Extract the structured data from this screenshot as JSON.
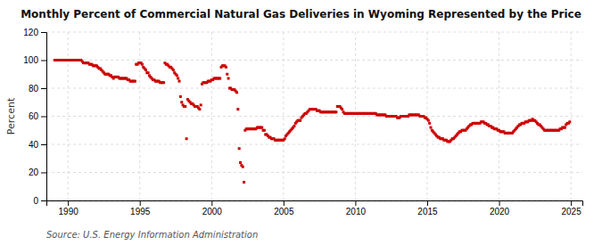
{
  "chart_data": {
    "type": "scatter",
    "title": "Monthly Percent of Commercial Natural Gas Deliveries in Wyoming Represented by the Price",
    "y_label": "Percent",
    "source": "Source: U.S. Energy Information Administration",
    "color": "#cc0000",
    "marker": "square",
    "grid": true,
    "xlim": [
      1988.5,
      2025.8
    ],
    "xticks": [
      1990,
      1995,
      2000,
      2005,
      2010,
      2015,
      2020,
      2025
    ],
    "ylim": [
      0,
      120
    ],
    "yticks": [
      0,
      20,
      40,
      60,
      80,
      100,
      120
    ],
    "x": [
      1989.083,
      1989.167,
      1989.25,
      1989.333,
      1989.417,
      1989.5,
      1989.583,
      1989.667,
      1989.75,
      1989.833,
      1989.917,
      1990,
      1990.083,
      1990.167,
      1990.25,
      1990.333,
      1990.417,
      1990.5,
      1990.583,
      1990.667,
      1990.75,
      1990.833,
      1990.917,
      1991,
      1991.083,
      1991.167,
      1991.25,
      1991.333,
      1991.417,
      1991.5,
      1991.583,
      1991.667,
      1991.75,
      1991.833,
      1991.917,
      1992,
      1992.083,
      1992.167,
      1992.25,
      1992.333,
      1992.417,
      1992.5,
      1992.583,
      1992.667,
      1992.75,
      1992.833,
      1992.917,
      1993,
      1993.083,
      1993.167,
      1993.25,
      1993.333,
      1993.417,
      1993.5,
      1993.583,
      1993.667,
      1993.75,
      1993.833,
      1993.917,
      1994,
      1994.083,
      1994.167,
      1994.25,
      1994.333,
      1994.417,
      1994.5,
      1994.583,
      1994.667,
      1994.75,
      1994.833,
      1994.917,
      1995,
      1995.083,
      1995.167,
      1995.25,
      1995.333,
      1995.417,
      1995.5,
      1995.583,
      1995.667,
      1995.75,
      1995.833,
      1995.917,
      1996,
      1996.083,
      1996.167,
      1996.25,
      1996.333,
      1996.417,
      1996.5,
      1996.583,
      1996.667,
      1996.75,
      1996.833,
      1996.917,
      1997,
      1997.083,
      1997.167,
      1997.25,
      1997.333,
      1997.417,
      1997.5,
      1997.583,
      1997.667,
      1997.75,
      1997.833,
      1997.917,
      1998,
      1998.083,
      1998.167,
      1998.25,
      1998.333,
      1998.417,
      1998.5,
      1998.583,
      1998.667,
      1998.75,
      1998.833,
      1998.917,
      1999,
      1999.083,
      1999.167,
      1999.25,
      1999.333,
      1999.417,
      1999.5,
      1999.583,
      1999.667,
      1999.75,
      1999.833,
      1999.917,
      2000,
      2000.083,
      2000.167,
      2000.25,
      2000.333,
      2000.417,
      2000.5,
      2000.583,
      2000.667,
      2000.75,
      2000.833,
      2000.917,
      2001,
      2001.083,
      2001.167,
      2001.25,
      2001.333,
      2001.417,
      2001.5,
      2001.583,
      2001.667,
      2001.75,
      2001.833,
      2001.917,
      2002,
      2002.083,
      2002.167,
      2002.25,
      2002.333,
      2002.417,
      2002.5,
      2002.583,
      2002.667,
      2002.75,
      2002.833,
      2002.917,
      2003,
      2003.083,
      2003.167,
      2003.25,
      2003.333,
      2003.417,
      2003.5,
      2003.583,
      2003.667,
      2003.75,
      2003.833,
      2003.917,
      2004,
      2004.083,
      2004.167,
      2004.25,
      2004.333,
      2004.417,
      2004.5,
      2004.583,
      2004.667,
      2004.75,
      2004.833,
      2004.917,
      2005,
      2005.083,
      2005.167,
      2005.25,
      2005.333,
      2005.417,
      2005.5,
      2005.583,
      2005.667,
      2005.75,
      2005.833,
      2005.917,
      2006,
      2006.083,
      2006.167,
      2006.25,
      2006.333,
      2006.417,
      2006.5,
      2006.583,
      2006.667,
      2006.75,
      2006.833,
      2006.917,
      2007,
      2007.083,
      2007.167,
      2007.25,
      2007.333,
      2007.417,
      2007.5,
      2007.583,
      2007.667,
      2007.75,
      2007.833,
      2007.917,
      2008,
      2008.083,
      2008.167,
      2008.25,
      2008.333,
      2008.417,
      2008.5,
      2008.583,
      2008.667,
      2008.75,
      2008.833,
      2008.917,
      2009,
      2009.083,
      2009.167,
      2009.25,
      2009.333,
      2009.417,
      2009.5,
      2009.583,
      2009.667,
      2009.75,
      2009.833,
      2009.917,
      2010,
      2010.083,
      2010.167,
      2010.25,
      2010.333,
      2010.417,
      2010.5,
      2010.583,
      2010.667,
      2010.75,
      2010.833,
      2010.917,
      2011,
      2011.083,
      2011.167,
      2011.25,
      2011.333,
      2011.417,
      2011.5,
      2011.583,
      2011.667,
      2011.75,
      2011.833,
      2011.917,
      2012,
      2012.083,
      2012.167,
      2012.25,
      2012.333,
      2012.417,
      2012.5,
      2012.583,
      2012.667,
      2012.75,
      2012.833,
      2012.917,
      2013,
      2013.083,
      2013.167,
      2013.25,
      2013.333,
      2013.417,
      2013.5,
      2013.583,
      2013.667,
      2013.75,
      2013.833,
      2013.917,
      2014,
      2014.083,
      2014.167,
      2014.25,
      2014.333,
      2014.417,
      2014.5,
      2014.583,
      2014.667,
      2014.75,
      2014.833,
      2014.917,
      2015,
      2015.083,
      2015.167,
      2015.25,
      2015.333,
      2015.417,
      2015.5,
      2015.583,
      2015.667,
      2015.75,
      2015.833,
      2015.917,
      2016,
      2016.083,
      2016.167,
      2016.25,
      2016.333,
      2016.417,
      2016.5,
      2016.583,
      2016.667,
      2016.75,
      2016.833,
      2016.917,
      2017,
      2017.083,
      2017.167,
      2017.25,
      2017.333,
      2017.417,
      2017.5,
      2017.583,
      2017.667,
      2017.75,
      2017.833,
      2017.917,
      2018,
      2018.083,
      2018.167,
      2018.25,
      2018.333,
      2018.417,
      2018.5,
      2018.583,
      2018.667,
      2018.75,
      2018.833,
      2018.917,
      2019,
      2019.083,
      2019.167,
      2019.25,
      2019.333,
      2019.417,
      2019.5,
      2019.583,
      2019.667,
      2019.75,
      2019.833,
      2019.917,
      2020,
      2020.083,
      2020.167,
      2020.25,
      2020.333,
      2020.417,
      2020.5,
      2020.583,
      2020.667,
      2020.75,
      2020.833,
      2020.917,
      2021,
      2021.083,
      2021.167,
      2021.25,
      2021.333,
      2021.417,
      2021.5,
      2021.583,
      2021.667,
      2021.75,
      2021.833,
      2021.917,
      2022,
      2022.083,
      2022.167,
      2022.25,
      2022.333,
      2022.417,
      2022.5,
      2022.583,
      2022.667,
      2022.75,
      2022.833,
      2022.917,
      2023,
      2023.083,
      2023.167,
      2023.25,
      2023.333,
      2023.417,
      2023.5,
      2023.583,
      2023.667,
      2023.75,
      2023.833,
      2023.917,
      2024,
      2024.083,
      2024.167,
      2024.25,
      2024.333,
      2024.417,
      2024.5,
      2024.583,
      2024.667,
      2024.75,
      2024.833,
      2024.917
    ],
    "values": [
      100,
      100,
      100,
      100,
      100,
      100,
      100,
      100,
      100,
      100,
      100,
      100,
      100,
      100,
      100,
      100,
      100,
      100,
      100,
      100,
      100,
      100,
      100,
      99,
      98,
      98,
      98,
      98,
      98,
      97,
      97,
      97,
      96,
      96,
      96,
      96,
      95,
      94,
      94,
      93,
      92,
      91,
      90,
      90,
      90,
      90,
      89,
      89,
      88,
      87,
      88,
      88,
      88,
      88,
      87,
      87,
      87,
      87,
      87,
      87,
      87,
      86,
      86,
      85,
      85,
      85,
      85,
      85,
      97,
      97,
      98,
      98,
      98,
      97,
      95,
      94,
      93,
      91,
      91,
      89,
      88,
      87,
      86,
      86,
      85,
      85,
      85,
      85,
      84,
      84,
      84,
      84,
      98,
      97,
      97,
      96,
      95,
      95,
      94,
      93,
      91,
      90,
      89,
      87,
      85,
      74,
      70,
      68,
      67,
      67,
      44,
      72,
      71,
      70,
      69,
      69,
      68,
      67,
      67,
      67,
      66,
      65,
      68,
      83,
      84,
      84,
      84,
      84,
      85,
      85,
      85,
      86,
      86,
      87,
      87,
      87,
      87,
      87,
      87,
      95,
      96,
      96,
      96,
      95,
      90,
      87,
      80,
      80,
      79,
      79,
      79,
      78,
      77,
      65,
      37,
      27,
      25,
      24,
      13,
      50,
      51,
      51,
      51,
      51,
      51,
      51,
      51,
      51,
      51,
      52,
      52,
      52,
      52,
      52,
      50,
      50,
      47,
      47,
      46,
      45,
      45,
      44,
      44,
      44,
      43,
      43,
      43,
      43,
      43,
      43,
      43,
      43,
      44,
      46,
      47,
      48,
      49,
      50,
      51,
      52,
      53,
      55,
      56,
      57,
      57,
      57,
      59,
      60,
      61,
      62,
      62,
      63,
      64,
      65,
      65,
      65,
      65,
      65,
      65,
      64,
      64,
      64,
      63,
      63,
      63,
      63,
      63,
      63,
      63,
      63,
      63,
      63,
      63,
      63,
      63,
      63,
      67,
      67,
      67,
      66,
      65,
      63,
      62,
      62,
      62,
      62,
      62,
      62,
      62,
      62,
      62,
      62,
      62,
      62,
      62,
      62,
      62,
      62,
      62,
      62,
      62,
      62,
      62,
      62,
      62,
      62,
      62,
      62,
      62,
      61,
      61,
      61,
      61,
      61,
      61,
      61,
      61,
      60,
      60,
      60,
      60,
      60,
      60,
      60,
      60,
      60,
      59,
      59,
      59,
      60,
      60,
      60,
      60,
      60,
      60,
      60,
      61,
      61,
      61,
      61,
      61,
      61,
      61,
      61,
      61,
      60,
      60,
      60,
      60,
      59,
      59,
      58,
      57,
      55,
      52,
      50,
      49,
      48,
      47,
      46,
      45,
      45,
      44,
      44,
      44,
      43,
      43,
      43,
      42,
      42,
      42,
      43,
      44,
      44,
      45,
      46,
      47,
      48,
      49,
      49,
      50,
      50,
      50,
      50,
      51,
      52,
      53,
      54,
      54,
      55,
      55,
      55,
      55,
      55,
      55,
      55,
      56,
      56,
      56,
      55,
      55,
      54,
      54,
      53,
      53,
      52,
      52,
      51,
      51,
      51,
      50,
      50,
      49,
      49,
      49,
      49,
      48,
      48,
      48,
      48,
      48,
      48,
      48,
      49,
      50,
      51,
      52,
      53,
      54,
      54,
      55,
      55,
      55,
      56,
      56,
      56,
      57,
      57,
      57,
      58,
      57,
      57,
      56,
      55,
      54,
      54,
      53,
      52,
      51,
      50,
      50,
      50,
      50,
      50,
      50,
      50,
      50,
      50,
      50,
      50,
      50,
      50,
      51,
      51,
      52,
      52,
      52,
      54,
      55,
      55,
      56
    ]
  }
}
